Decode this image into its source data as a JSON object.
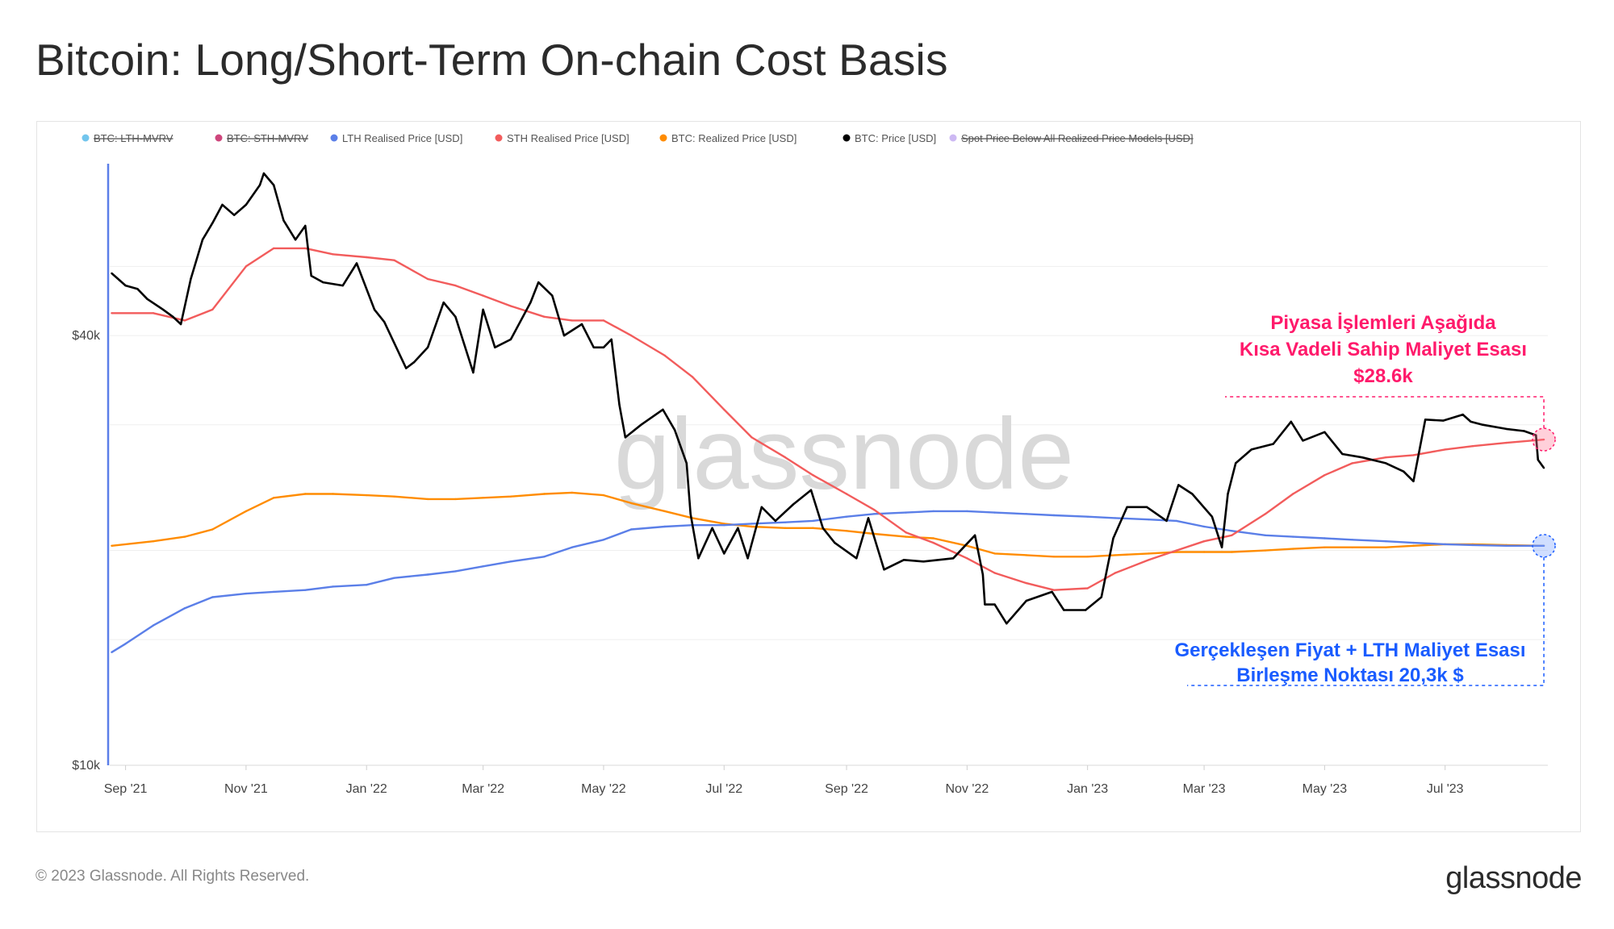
{
  "title": "Bitcoin: Long/Short-Term On-chain Cost Basis",
  "footer": {
    "copyright": "© 2023 Glassnode. All Rights Reserved.",
    "logo": "glassnode"
  },
  "watermark": "glassnode",
  "colors": {
    "lth": "#5b7fe8",
    "sth": "#f25c5c",
    "realized": "#ff8c00",
    "price": "#000000",
    "lth_mvrv": "#4fb6e8",
    "sth_mvrv": "#c2185b",
    "spot_below": "#c0a8f0",
    "annotation_red": "#ff1a6b",
    "annotation_blue": "#1a5cff"
  },
  "chart_data": {
    "type": "line",
    "y_scale": "log",
    "ylim": [
      10000,
      70000
    ],
    "legend_position": "top",
    "yticks": [
      {
        "value": 40000,
        "label": "$40k"
      },
      {
        "value": 10000,
        "label": "$10k"
      }
    ],
    "xticks": [
      {
        "date": "2021-09-01",
        "label": "Sep '21"
      },
      {
        "date": "2021-11-01",
        "label": "Nov '21"
      },
      {
        "date": "2022-01-01",
        "label": "Jan '22"
      },
      {
        "date": "2022-03-01",
        "label": "Mar '22"
      },
      {
        "date": "2022-05-01",
        "label": "May '22"
      },
      {
        "date": "2022-07-01",
        "label": "Jul '22"
      },
      {
        "date": "2022-09-01",
        "label": "Sep '22"
      },
      {
        "date": "2022-11-01",
        "label": "Nov '22"
      },
      {
        "date": "2023-01-01",
        "label": "Jan '23"
      },
      {
        "date": "2023-03-01",
        "label": "Mar '23"
      },
      {
        "date": "2023-05-01",
        "label": "May '23"
      },
      {
        "date": "2023-07-01",
        "label": "Jul '23"
      }
    ],
    "xlim": [
      "2021-08-24",
      "2023-08-22"
    ],
    "legend": [
      {
        "name": "BTC: LTH-MVRV",
        "color": "#4fb6e8",
        "hidden": true
      },
      {
        "name": "BTC: STH-MVRV",
        "color": "#c2185b",
        "hidden": true
      },
      {
        "name": "LTH Realised Price [USD]",
        "color": "#5b7fe8",
        "hidden": false
      },
      {
        "name": "STH Realised Price [USD]",
        "color": "#f25c5c",
        "hidden": false
      },
      {
        "name": "BTC: Realized Price [USD]",
        "color": "#ff8c00",
        "hidden": false
      },
      {
        "name": "BTC: Price [USD]",
        "color": "#000000",
        "hidden": false
      },
      {
        "name": "Spot Price Below All Realized Price Models [USD]",
        "color": "#c0a8f0",
        "hidden": true
      }
    ],
    "series": [
      {
        "name": "BTC: Price [USD]",
        "color": "#000000",
        "x": [
          "2021-08-25",
          "2021-09-01",
          "2021-09-07",
          "2021-09-12",
          "2021-09-20",
          "2021-09-25",
          "2021-09-29",
          "2021-10-04",
          "2021-10-10",
          "2021-10-15",
          "2021-10-20",
          "2021-10-26",
          "2021-11-01",
          "2021-11-08",
          "2021-11-10",
          "2021-11-15",
          "2021-11-20",
          "2021-11-26",
          "2021-12-01",
          "2021-12-04",
          "2021-12-10",
          "2021-12-20",
          "2021-12-27",
          "2022-01-05",
          "2022-01-10",
          "2022-01-21",
          "2022-01-25",
          "2022-02-01",
          "2022-02-09",
          "2022-02-15",
          "2022-02-24",
          "2022-03-01",
          "2022-03-07",
          "2022-03-15",
          "2022-03-25",
          "2022-03-29",
          "2022-04-05",
          "2022-04-11",
          "2022-04-20",
          "2022-04-26",
          "2022-05-01",
          "2022-05-05",
          "2022-05-09",
          "2022-05-12",
          "2022-05-20",
          "2022-05-31",
          "2022-06-06",
          "2022-06-12",
          "2022-06-14",
          "2022-06-18",
          "2022-06-25",
          "2022-07-01",
          "2022-07-08",
          "2022-07-13",
          "2022-07-20",
          "2022-07-27",
          "2022-08-05",
          "2022-08-14",
          "2022-08-20",
          "2022-08-26",
          "2022-09-06",
          "2022-09-12",
          "2022-09-20",
          "2022-09-30",
          "2022-10-10",
          "2022-10-25",
          "2022-11-05",
          "2022-11-09",
          "2022-11-10",
          "2022-11-15",
          "2022-11-21",
          "2022-12-01",
          "2022-12-14",
          "2022-12-20",
          "2022-12-31",
          "2023-01-08",
          "2023-01-14",
          "2023-01-21",
          "2023-01-31",
          "2023-02-10",
          "2023-02-16",
          "2023-02-23",
          "2023-03-05",
          "2023-03-10",
          "2023-03-13",
          "2023-03-17",
          "2023-03-25",
          "2023-04-05",
          "2023-04-14",
          "2023-04-20",
          "2023-05-01",
          "2023-05-10",
          "2023-05-20",
          "2023-06-01",
          "2023-06-10",
          "2023-06-15",
          "2023-06-21",
          "2023-06-30",
          "2023-07-10",
          "2023-07-14",
          "2023-07-20",
          "2023-08-01",
          "2023-08-10",
          "2023-08-16",
          "2023-08-17",
          "2023-08-20"
        ],
        "values": [
          48900,
          47000,
          46500,
          45000,
          43500,
          42500,
          41500,
          48000,
          54500,
          57500,
          61000,
          59000,
          61000,
          65000,
          67500,
          65000,
          58000,
          54500,
          57000,
          48500,
          47500,
          47000,
          50500,
          43500,
          41800,
          36000,
          36700,
          38500,
          44500,
          42500,
          35500,
          43500,
          38500,
          39500,
          44500,
          47500,
          45500,
          40000,
          41500,
          38500,
          38500,
          39500,
          32000,
          28800,
          30000,
          31500,
          29500,
          26500,
          22500,
          19500,
          21500,
          19800,
          21500,
          19500,
          23000,
          22000,
          23200,
          24300,
          21500,
          20500,
          19500,
          22200,
          18800,
          19400,
          19300,
          19500,
          21000,
          18500,
          16800,
          16800,
          15800,
          17000,
          17500,
          16500,
          16500,
          17200,
          20800,
          23000,
          23000,
          22000,
          24700,
          24000,
          22300,
          20200,
          24000,
          26500,
          27700,
          28200,
          30300,
          28500,
          29300,
          27300,
          27000,
          26500,
          25800,
          25000,
          30500,
          30400,
          31000,
          30300,
          30000,
          29600,
          29400,
          29000,
          26800,
          26100
        ]
      },
      {
        "name": "STH Realised Price [USD]",
        "color": "#f25c5c",
        "x": [
          "2021-08-25",
          "2021-09-15",
          "2021-10-01",
          "2021-10-15",
          "2021-11-01",
          "2021-11-15",
          "2021-12-01",
          "2021-12-15",
          "2022-01-01",
          "2022-01-15",
          "2022-02-01",
          "2022-02-15",
          "2022-03-01",
          "2022-03-15",
          "2022-04-01",
          "2022-04-15",
          "2022-05-01",
          "2022-05-15",
          "2022-06-01",
          "2022-06-15",
          "2022-07-01",
          "2022-07-15",
          "2022-08-01",
          "2022-08-15",
          "2022-09-01",
          "2022-09-15",
          "2022-10-01",
          "2022-10-15",
          "2022-11-01",
          "2022-11-15",
          "2022-12-01",
          "2022-12-15",
          "2023-01-01",
          "2023-01-15",
          "2023-02-01",
          "2023-02-15",
          "2023-03-01",
          "2023-03-15",
          "2023-04-01",
          "2023-04-15",
          "2023-05-01",
          "2023-05-15",
          "2023-06-01",
          "2023-06-15",
          "2023-07-01",
          "2023-07-15",
          "2023-08-01",
          "2023-08-20"
        ],
        "values": [
          43000,
          43000,
          42000,
          43500,
          50000,
          53000,
          53000,
          52000,
          51500,
          51000,
          48000,
          47000,
          45500,
          44000,
          42500,
          42000,
          42000,
          40000,
          37500,
          35000,
          31500,
          28800,
          27000,
          25500,
          24000,
          22800,
          21200,
          20500,
          19500,
          18600,
          18000,
          17600,
          17700,
          18600,
          19400,
          20000,
          20600,
          21000,
          22500,
          24000,
          25500,
          26500,
          27000,
          27200,
          27700,
          28000,
          28300,
          28600
        ]
      },
      {
        "name": "BTC: Realized Price [USD]",
        "color": "#ff8c00",
        "x": [
          "2021-08-25",
          "2021-09-15",
          "2021-10-01",
          "2021-10-15",
          "2021-11-01",
          "2021-11-15",
          "2021-12-01",
          "2021-12-15",
          "2022-01-01",
          "2022-01-15",
          "2022-02-01",
          "2022-02-15",
          "2022-03-01",
          "2022-03-15",
          "2022-04-01",
          "2022-04-15",
          "2022-05-01",
          "2022-05-15",
          "2022-06-01",
          "2022-06-15",
          "2022-07-01",
          "2022-07-15",
          "2022-08-01",
          "2022-08-15",
          "2022-09-01",
          "2022-09-15",
          "2022-10-01",
          "2022-10-15",
          "2022-11-01",
          "2022-11-15",
          "2022-12-01",
          "2022-12-15",
          "2023-01-01",
          "2023-01-15",
          "2023-02-01",
          "2023-02-15",
          "2023-03-01",
          "2023-03-15",
          "2023-04-01",
          "2023-04-15",
          "2023-05-01",
          "2023-05-15",
          "2023-06-01",
          "2023-06-15",
          "2023-07-01",
          "2023-07-15",
          "2023-08-01",
          "2023-08-20"
        ],
        "values": [
          20300,
          20600,
          20900,
          21400,
          22700,
          23700,
          24000,
          24000,
          23900,
          23800,
          23600,
          23600,
          23700,
          23800,
          24000,
          24100,
          23900,
          23300,
          22700,
          22200,
          21800,
          21600,
          21500,
          21500,
          21300,
          21100,
          20900,
          20800,
          20300,
          19800,
          19700,
          19600,
          19600,
          19700,
          19800,
          19900,
          19900,
          19900,
          20000,
          20100,
          20200,
          20200,
          20200,
          20300,
          20400,
          20400,
          20350,
          20300
        ]
      },
      {
        "name": "LTH Realised Price [USD]",
        "color": "#5b7fe8",
        "x": [
          "2021-08-25",
          "2021-09-01",
          "2021-09-15",
          "2021-10-01",
          "2021-10-15",
          "2021-11-01",
          "2021-11-15",
          "2021-12-01",
          "2021-12-15",
          "2022-01-01",
          "2022-01-15",
          "2022-02-01",
          "2022-02-15",
          "2022-03-01",
          "2022-03-15",
          "2022-04-01",
          "2022-04-15",
          "2022-05-01",
          "2022-05-15",
          "2022-06-01",
          "2022-06-15",
          "2022-07-01",
          "2022-07-15",
          "2022-08-01",
          "2022-08-15",
          "2022-09-01",
          "2022-09-15",
          "2022-10-01",
          "2022-10-15",
          "2022-11-01",
          "2022-11-15",
          "2022-12-01",
          "2022-12-15",
          "2023-01-01",
          "2023-01-15",
          "2023-02-01",
          "2023-02-15",
          "2023-03-01",
          "2023-03-15",
          "2023-04-01",
          "2023-04-15",
          "2023-05-01",
          "2023-05-15",
          "2023-06-01",
          "2023-06-15",
          "2023-07-01",
          "2023-07-15",
          "2023-08-01",
          "2023-08-20"
        ],
        "values": [
          14400,
          14800,
          15700,
          16600,
          17200,
          17400,
          17500,
          17600,
          17800,
          17900,
          18300,
          18500,
          18700,
          19000,
          19300,
          19600,
          20200,
          20700,
          21400,
          21600,
          21700,
          21700,
          21800,
          21900,
          22000,
          22300,
          22500,
          22600,
          22700,
          22700,
          22600,
          22500,
          22400,
          22300,
          22200,
          22100,
          22000,
          21600,
          21300,
          21000,
          20900,
          20800,
          20700,
          20600,
          20500,
          20400,
          20350,
          20300,
          20300
        ]
      }
    ]
  },
  "annotations": {
    "sth": {
      "lines": [
        "Piyasa İşlemleri Aşağıda",
        "Kısa Vadeli Sahip Maliyet Esası",
        "$28.6k"
      ],
      "date": "2023-08-20",
      "value": 28600
    },
    "lth": {
      "lines": [
        "Gerçekleşen Fiyat + LTH Maliyet Esası",
        "Birleşme Noktası 20,3k $"
      ],
      "date": "2023-08-20",
      "value": 20300
    }
  }
}
